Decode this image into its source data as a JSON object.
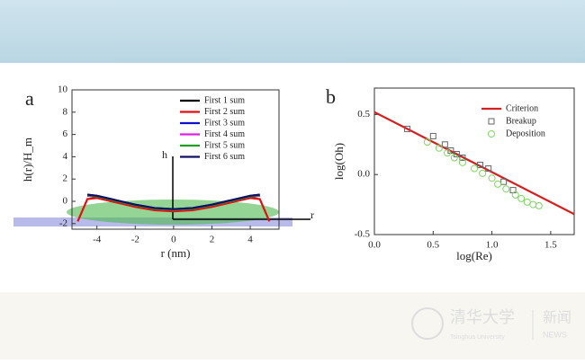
{
  "chart_data": [
    {
      "type": "line",
      "panel": "a",
      "x_label": "r (nm)",
      "y_label": "h(r)/H_m",
      "annotations": [
        "h",
        "r"
      ],
      "x": [
        -5,
        -4.5,
        -4,
        -3,
        -2,
        -1,
        0,
        1,
        2,
        3,
        4,
        4.5,
        5
      ],
      "series": [
        {
          "name": "First 1 sum",
          "color": "#000000",
          "values": [
            null,
            0.5,
            0.4,
            0,
            -0.4,
            -0.7,
            -0.8,
            -0.7,
            -0.4,
            0,
            0.4,
            0.5,
            null
          ]
        },
        {
          "name": "First 2 sum",
          "color": "#e01010",
          "values": [
            -1.8,
            0.2,
            0.3,
            -0.1,
            -0.5,
            -0.8,
            -0.9,
            -0.8,
            -0.5,
            -0.1,
            0.3,
            0.2,
            -1.8
          ]
        },
        {
          "name": "First 3 sum",
          "color": "#1010d0",
          "values": [
            null,
            0.6,
            0.5,
            0.1,
            -0.3,
            -0.6,
            -0.7,
            -0.6,
            -0.3,
            0.1,
            0.5,
            0.6,
            null
          ]
        },
        {
          "name": "First 4 sum",
          "color": "#e020e0",
          "values": [
            null,
            0.5,
            0.45,
            0.05,
            -0.35,
            -0.65,
            -0.75,
            -0.65,
            -0.35,
            0.05,
            0.45,
            0.5,
            null
          ]
        },
        {
          "name": "First 5 sum",
          "color": "#20a020",
          "values": [
            null,
            0.55,
            0.45,
            0.05,
            -0.35,
            -0.65,
            -0.75,
            -0.65,
            -0.35,
            0.05,
            0.45,
            0.55,
            null
          ]
        },
        {
          "name": "First 6 sum",
          "color": "#101060",
          "values": [
            null,
            0.6,
            0.5,
            0.1,
            -0.3,
            -0.6,
            -0.7,
            -0.6,
            -0.3,
            0.1,
            0.5,
            0.6,
            null
          ]
        }
      ],
      "xlim": [
        -5.3,
        5.5
      ],
      "xticks": [
        -4,
        -2,
        0,
        2,
        4
      ],
      "ylim": [
        -2.5,
        10
      ],
      "yticks": [
        -2,
        0,
        2,
        4,
        6,
        8,
        10
      ]
    },
    {
      "type": "scatter",
      "panel": "b",
      "x_label": "log(Re)",
      "y_label": "log(Oh)",
      "series": [
        {
          "name": "Criterion",
          "color": "#d42020",
          "marker": "line",
          "x": [
            0,
            1.7
          ],
          "values": [
            0.52,
            -0.33
          ]
        },
        {
          "name": "Breakup",
          "color": "#666666",
          "marker": "square",
          "x": [
            0.28,
            0.5,
            0.6,
            0.65,
            0.7,
            0.75,
            0.9,
            0.97,
            1.1,
            1.18
          ],
          "values": [
            0.38,
            0.32,
            0.25,
            0.2,
            0.17,
            0.14,
            0.08,
            0.05,
            -0.06,
            -0.13
          ]
        },
        {
          "name": "Deposition",
          "color": "#7cd860",
          "marker": "circle",
          "x": [
            0.45,
            0.55,
            0.62,
            0.68,
            0.75,
            0.85,
            0.92,
            1.0,
            1.05,
            1.12,
            1.2,
            1.25,
            1.3,
            1.35,
            1.4
          ],
          "values": [
            0.27,
            0.22,
            0.18,
            0.14,
            0.1,
            0.05,
            0.01,
            -0.03,
            -0.08,
            -0.12,
            -0.17,
            -0.2,
            -0.23,
            -0.25,
            -0.26
          ]
        }
      ],
      "xlim": [
        0,
        1.7
      ],
      "xticks": [
        {
          "value": 0,
          "label": "0.0"
        },
        {
          "value": 0.5,
          "label": "0.5"
        },
        {
          "value": 1,
          "label": "1.0"
        },
        {
          "value": 1.5,
          "label": "1.5"
        }
      ],
      "ylim": [
        -0.5,
        0.72
      ],
      "yticks": [
        {
          "value": -0.5,
          "label": "-0.5"
        },
        {
          "value": 0,
          "label": "0.0"
        },
        {
          "value": 0.5,
          "label": "0.5"
        }
      ]
    }
  ],
  "footer": {
    "logo": "清华大学",
    "logo_en": "Tsinghua University",
    "section": "新闻",
    "section_en": "NEWS"
  }
}
